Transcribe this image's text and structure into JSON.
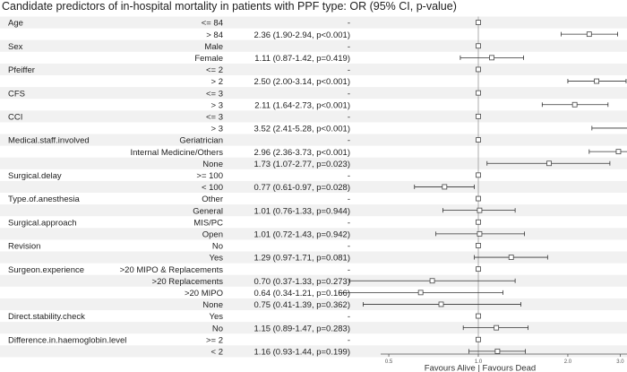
{
  "chart_data": {
    "type": "forest",
    "title": "Candidate predictors of in-hospital mortality in patients with PPF type: OR (95% CI, p-value)",
    "xlabel": "Favours Alive | Favours Dead",
    "x_scale": "log",
    "xlim": [
      0.3,
      5.2
    ],
    "reference_line": 1.0,
    "x_ticks": [
      {
        "value": 0.5,
        "label": "0.5"
      },
      {
        "value": 1.0,
        "label": "1.0"
      },
      {
        "value": 2.0,
        "label": "2.0"
      },
      {
        "value": 3.0,
        "label": "3.0"
      }
    ],
    "rows": [
      {
        "variable": "Age",
        "level": "<= 84",
        "text": "-",
        "or": 1.0,
        "lo": null,
        "hi": null
      },
      {
        "variable": "",
        "level": "> 84",
        "text": "2.36 (1.90-2.94, p<0.001)",
        "or": 2.36,
        "lo": 1.9,
        "hi": 2.94
      },
      {
        "variable": "Sex",
        "level": "Male",
        "text": "-",
        "or": 1.0,
        "lo": null,
        "hi": null
      },
      {
        "variable": "",
        "level": "Female",
        "text": "1.11 (0.87-1.42, p=0.419)",
        "or": 1.11,
        "lo": 0.87,
        "hi": 1.42
      },
      {
        "variable": "Pfeiffer",
        "level": "<= 2",
        "text": "-",
        "or": 1.0,
        "lo": null,
        "hi": null
      },
      {
        "variable": "",
        "level": "> 2",
        "text": "2.50 (2.00-3.14, p<0.001)",
        "or": 2.5,
        "lo": 2.0,
        "hi": 3.14
      },
      {
        "variable": "CFS",
        "level": "<= 3",
        "text": "-",
        "or": 1.0,
        "lo": null,
        "hi": null
      },
      {
        "variable": "",
        "level": "> 3",
        "text": "2.11 (1.64-2.73, p<0.001)",
        "or": 2.11,
        "lo": 1.64,
        "hi": 2.73
      },
      {
        "variable": "CCI",
        "level": "<= 3",
        "text": "-",
        "or": 1.0,
        "lo": null,
        "hi": null
      },
      {
        "variable": "",
        "level": "> 3",
        "text": "3.52 (2.41-5.28, p<0.001)",
        "or": 3.52,
        "lo": 2.41,
        "hi": 5.28
      },
      {
        "variable": "Medical.staff.involved",
        "level": "Geriatrician",
        "text": "-",
        "or": 1.0,
        "lo": null,
        "hi": null
      },
      {
        "variable": "",
        "level": "Internal Medicine/Others",
        "text": "2.96 (2.36-3.73, p<0.001)",
        "or": 2.96,
        "lo": 2.36,
        "hi": 3.73
      },
      {
        "variable": "",
        "level": "None",
        "text": "1.73 (1.07-2.77, p=0.023)",
        "or": 1.73,
        "lo": 1.07,
        "hi": 2.77
      },
      {
        "variable": "Surgical.delay",
        "level": ">= 100",
        "text": "-",
        "or": 1.0,
        "lo": null,
        "hi": null
      },
      {
        "variable": "",
        "level": "< 100",
        "text": "0.77 (0.61-0.97, p=0.028)",
        "or": 0.77,
        "lo": 0.61,
        "hi": 0.97
      },
      {
        "variable": "Type.of.anesthesia",
        "level": "Other",
        "text": "-",
        "or": 1.0,
        "lo": null,
        "hi": null
      },
      {
        "variable": "",
        "level": "General",
        "text": "1.01 (0.76-1.33, p=0.944)",
        "or": 1.01,
        "lo": 0.76,
        "hi": 1.33
      },
      {
        "variable": "Surgical.approach",
        "level": "MIS/PC",
        "text": "-",
        "or": 1.0,
        "lo": null,
        "hi": null
      },
      {
        "variable": "",
        "level": "Open",
        "text": "1.01 (0.72-1.43, p=0.942)",
        "or": 1.01,
        "lo": 0.72,
        "hi": 1.43
      },
      {
        "variable": "Revision",
        "level": "No",
        "text": "-",
        "or": 1.0,
        "lo": null,
        "hi": null
      },
      {
        "variable": "",
        "level": "Yes",
        "text": "1.29 (0.97-1.71, p=0.081)",
        "or": 1.29,
        "lo": 0.97,
        "hi": 1.71
      },
      {
        "variable": "Surgeon.experience",
        "level": ">20 MIPO & Replacements",
        "text": "-",
        "or": 1.0,
        "lo": null,
        "hi": null
      },
      {
        "variable": "",
        "level": ">20 Replacements",
        "text": "0.70 (0.37-1.33, p=0.273)",
        "or": 0.7,
        "lo": 0.37,
        "hi": 1.33
      },
      {
        "variable": "",
        "level": ">20 MIPO",
        "text": "0.64 (0.34-1.21, p=0.166)",
        "or": 0.64,
        "lo": 0.34,
        "hi": 1.21
      },
      {
        "variable": "",
        "level": "None",
        "text": "0.75 (0.41-1.39, p=0.362)",
        "or": 0.75,
        "lo": 0.41,
        "hi": 1.39
      },
      {
        "variable": "Direct.stability.check",
        "level": "Yes",
        "text": "-",
        "or": 1.0,
        "lo": null,
        "hi": null
      },
      {
        "variable": "",
        "level": "No",
        "text": "1.15 (0.89-1.47, p=0.283)",
        "or": 1.15,
        "lo": 0.89,
        "hi": 1.47
      },
      {
        "variable": "Difference.in.haemoglobin.level",
        "level": ">= 2",
        "text": "-",
        "or": 1.0,
        "lo": null,
        "hi": null
      },
      {
        "variable": "",
        "level": "< 2",
        "text": "1.16 (0.93-1.44, p=0.199)",
        "or": 1.16,
        "lo": 0.93,
        "hi": 1.44
      }
    ]
  }
}
